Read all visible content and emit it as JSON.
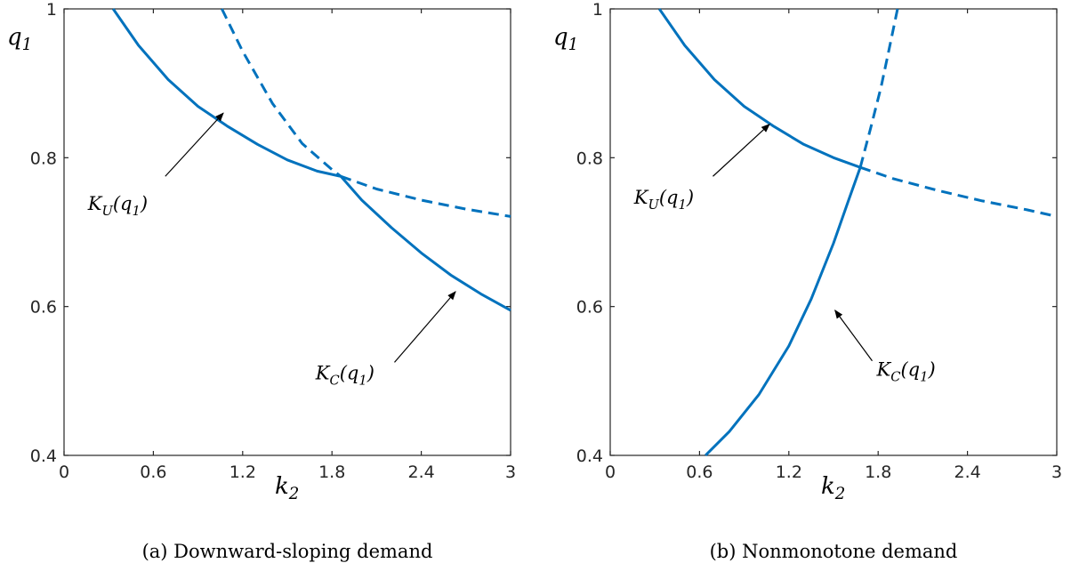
{
  "chart_data": [
    {
      "type": "line",
      "caption": "(a) Downward-sloping demand",
      "xlabel": "k",
      "xlabel_sub": "2",
      "ylabel": "q",
      "ylabel_sub": "1",
      "xlim": [
        0,
        3
      ],
      "ylim": [
        0.4,
        1
      ],
      "xticks": [
        "0",
        "0.6",
        "1.2",
        "1.8",
        "2.4",
        "3"
      ],
      "yticks": [
        "0.4",
        "0.6",
        "0.8",
        "1"
      ],
      "grid": false,
      "color": "#0072BD",
      "series": [
        {
          "id": "KU",
          "style": "solid",
          "points": [
            [
              0.33,
              1.0
            ],
            [
              0.5,
              0.951
            ],
            [
              0.7,
              0.905
            ],
            [
              0.9,
              0.869
            ],
            [
              1.1,
              0.842
            ],
            [
              1.3,
              0.818
            ],
            [
              1.5,
              0.797
            ],
            [
              1.7,
              0.782
            ],
            [
              1.86,
              0.775
            ]
          ]
        },
        {
          "id": "KU",
          "style": "dashed",
          "points": [
            [
              1.86,
              0.775
            ],
            [
              2.1,
              0.758
            ],
            [
              2.4,
              0.743
            ],
            [
              2.7,
              0.731
            ],
            [
              3.0,
              0.721
            ]
          ]
        },
        {
          "id": "KC",
          "style": "dashed",
          "points": [
            [
              1.06,
              1.0
            ],
            [
              1.2,
              0.943
            ],
            [
              1.4,
              0.873
            ],
            [
              1.6,
              0.819
            ],
            [
              1.8,
              0.784
            ],
            [
              1.86,
              0.775
            ]
          ]
        },
        {
          "id": "KC",
          "style": "solid",
          "points": [
            [
              1.86,
              0.775
            ],
            [
              2.0,
              0.743
            ],
            [
              2.2,
              0.706
            ],
            [
              2.4,
              0.672
            ],
            [
              2.6,
              0.642
            ],
            [
              2.8,
              0.617
            ],
            [
              3.0,
              0.595
            ]
          ]
        }
      ],
      "annotations": [
        {
          "text": "K",
          "sub": "U",
          "arg": "(q",
          "argsub": "1",
          "close": ")",
          "text_at": [
            0.16,
            0.73
          ],
          "arrow_from": [
            0.68,
            0.775
          ],
          "arrow_to": [
            1.07,
            0.86
          ]
        },
        {
          "text": "K",
          "sub": "C",
          "arg": "(q",
          "argsub": "1",
          "close": ")",
          "text_at": [
            1.69,
            0.502
          ],
          "arrow_from": [
            2.22,
            0.525
          ],
          "arrow_to": [
            2.63,
            0.62
          ]
        }
      ]
    },
    {
      "type": "line",
      "caption": "(b) Nonmonotone demand",
      "xlabel": "k",
      "xlabel_sub": "2",
      "ylabel": "q",
      "ylabel_sub": "1",
      "xlim": [
        0,
        3
      ],
      "ylim": [
        0.4,
        1
      ],
      "xticks": [
        "0",
        "0.6",
        "1.2",
        "1.8",
        "2.4",
        "3"
      ],
      "yticks": [
        "0.4",
        "0.6",
        "0.8",
        "1"
      ],
      "grid": false,
      "color": "#0072BD",
      "series": [
        {
          "id": "KU",
          "style": "solid",
          "points": [
            [
              0.33,
              1.0
            ],
            [
              0.5,
              0.951
            ],
            [
              0.7,
              0.905
            ],
            [
              0.9,
              0.869
            ],
            [
              1.1,
              0.842
            ],
            [
              1.3,
              0.818
            ],
            [
              1.5,
              0.8
            ],
            [
              1.68,
              0.787
            ]
          ]
        },
        {
          "id": "KU",
          "style": "dashed",
          "points": [
            [
              1.68,
              0.787
            ],
            [
              1.9,
              0.772
            ],
            [
              2.2,
              0.756
            ],
            [
              2.5,
              0.742
            ],
            [
              2.8,
              0.73
            ],
            [
              3.0,
              0.721
            ]
          ]
        },
        {
          "id": "KC",
          "style": "solid",
          "points": [
            [
              0.64,
              0.4
            ],
            [
              0.8,
              0.432
            ],
            [
              1.0,
              0.482
            ],
            [
              1.2,
              0.547
            ],
            [
              1.35,
              0.61
            ],
            [
              1.5,
              0.685
            ],
            [
              1.6,
              0.742
            ],
            [
              1.68,
              0.787
            ]
          ]
        },
        {
          "id": "KC",
          "style": "dashed",
          "points": [
            [
              1.68,
              0.787
            ],
            [
              1.75,
              0.84
            ],
            [
              1.82,
              0.895
            ],
            [
              1.88,
              0.952
            ],
            [
              1.93,
              1.0
            ]
          ]
        }
      ],
      "annotations": [
        {
          "text": "K",
          "sub": "U",
          "arg": "(q",
          "argsub": "1",
          "close": ")",
          "text_at": [
            0.16,
            0.738
          ],
          "arrow_from": [
            0.69,
            0.775
          ],
          "arrow_to": [
            1.07,
            0.845
          ]
        },
        {
          "text": "K",
          "sub": "C",
          "arg": "(q",
          "argsub": "1",
          "close": ")",
          "text_at": [
            1.79,
            0.507
          ],
          "arrow_from": [
            1.76,
            0.527
          ],
          "arrow_to": [
            1.51,
            0.595
          ]
        }
      ]
    }
  ]
}
